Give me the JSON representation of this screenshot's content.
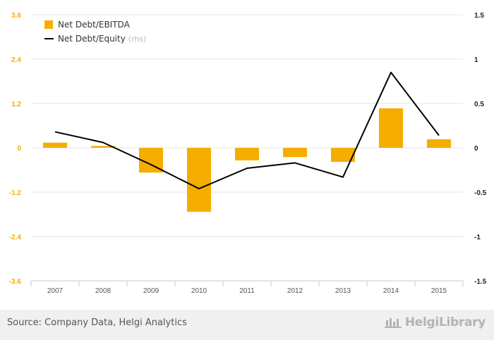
{
  "chart_data": {
    "type": "bar+line",
    "categories": [
      "2007",
      "2008",
      "2009",
      "2010",
      "2011",
      "2012",
      "2013",
      "2014",
      "2015"
    ],
    "series": [
      {
        "name": "Net Debt/EBITDA",
        "type": "bar",
        "axis": "left",
        "color": "#f5ad00",
        "values": [
          0.14,
          0.05,
          -0.67,
          -1.73,
          -0.34,
          -0.25,
          -0.38,
          1.07,
          0.23
        ]
      },
      {
        "name": "Net Debt/Equity",
        "name_suffix": "(rhs)",
        "type": "line",
        "axis": "right",
        "color": "#000000",
        "values": [
          0.18,
          0.06,
          -0.19,
          -0.46,
          -0.23,
          -0.17,
          -0.33,
          0.85,
          0.14
        ]
      }
    ],
    "y_left": {
      "ticks": [
        "3.6",
        "2.4",
        "1.2",
        "0",
        "-1.2",
        "-2.4",
        "-3.6"
      ],
      "ylim": [
        -3.6,
        3.6
      ],
      "color": "#f5ad00"
    },
    "y_right": {
      "ticks": [
        "1.5",
        "1",
        "0.5",
        "0",
        "-0.5",
        "-1",
        "-1.5"
      ],
      "ylim": [
        -1.5,
        1.5
      ]
    },
    "grid": true,
    "legend": "top-left"
  },
  "footer": {
    "source": "Source: Company Data, Helgi Analytics",
    "brand": "HelgiLibrary"
  }
}
